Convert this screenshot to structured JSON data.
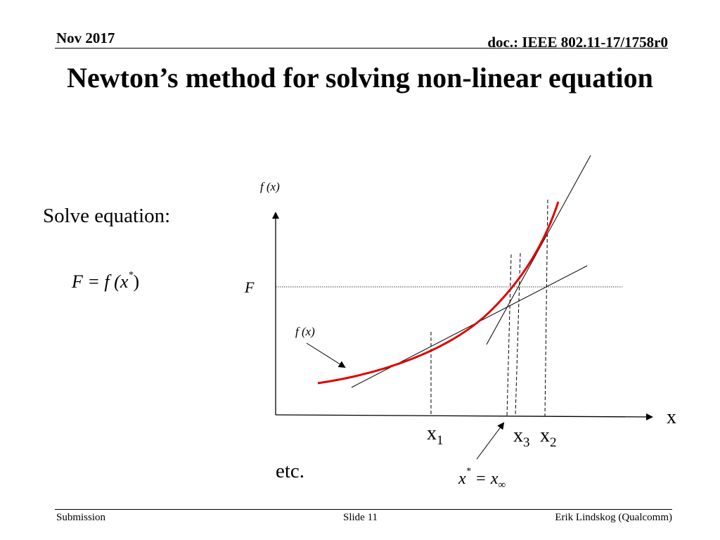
{
  "header": {
    "date": "Nov 2017",
    "doc_id": "doc.: IEEE 802.11-17/1758r0"
  },
  "title": "Newton’s method for solving non-linear equation",
  "body": {
    "solve_label": "Solve equation:",
    "equation": {
      "lhs": "F",
      "rhs_fn": "= f (x",
      "rhs_sup": "*",
      "rhs_close": ")"
    },
    "etc_label": "etc."
  },
  "diagram": {
    "y_axis_label": "f (x)",
    "x_axis_label": "x",
    "level_label": "F",
    "curve_label": "f (x)",
    "x1_label": "x",
    "x1_sub": "1",
    "x2_label": "x",
    "x2_sub": "2",
    "x3_label": "x",
    "x3_sub": "3",
    "limit_lhs": "x",
    "limit_sup": "*",
    "limit_eq": "= x",
    "limit_sub": "∞",
    "curve_color": "#e00000"
  },
  "footer": {
    "left": "Submission",
    "center": "Slide 11",
    "right": "Erik Lindskog (Qualcomm)"
  }
}
